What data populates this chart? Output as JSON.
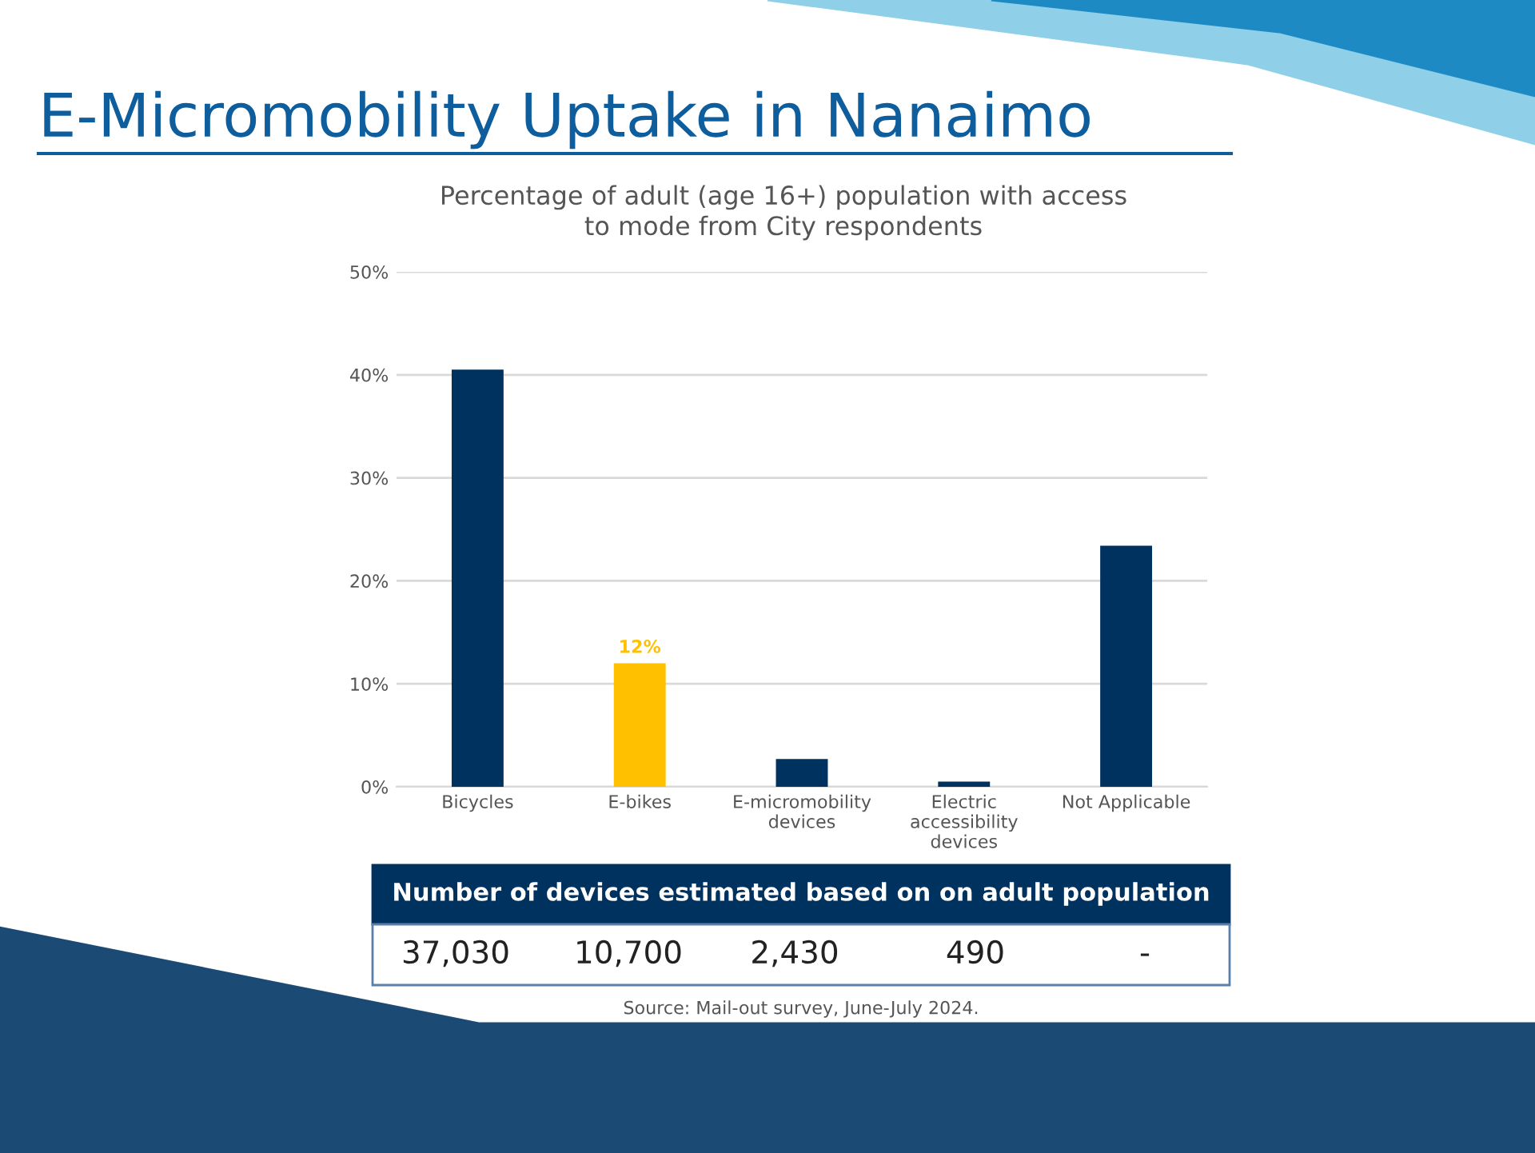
{
  "chart_data": {
    "type": "bar",
    "title": "E-Micromobility Uptake in Nanaimo",
    "subtitle": "Percentage of adult (age 16+) population with access\nto mode from City respondents",
    "categories": [
      "Bicycles",
      "E-bikes",
      "E-micromobility\ndevices",
      "Electric\naccessibility\ndevices",
      "Not Applicable"
    ],
    "values": [
      40.5,
      12,
      2.7,
      0.5,
      23.4
    ],
    "colors": [
      "#00325f",
      "#ffc000",
      "#00325f",
      "#00325f",
      "#00325f"
    ],
    "value_labels": [
      null,
      "12%",
      null,
      null,
      null
    ],
    "ylim": [
      0,
      50
    ],
    "yticks": [
      {
        "value": 0,
        "label": "0%"
      },
      {
        "value": 10,
        "label": "10%"
      },
      {
        "value": 20,
        "label": "20%"
      },
      {
        "value": 30,
        "label": "30%"
      },
      {
        "value": 40,
        "label": "40%"
      },
      {
        "value": 50,
        "label": "50%"
      }
    ],
    "grid": "y",
    "annotations": [
      "Number of devices estimated based on on adult population",
      "37,030",
      "10,700",
      "2,430",
      "490",
      "-",
      "Source: Mail-out survey, June-July 2024."
    ]
  }
}
